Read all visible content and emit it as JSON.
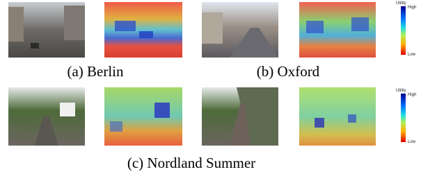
{
  "captions": [
    "(a) Berlin",
    "(b) Oxford",
    "(c) Nordland Summer"
  ],
  "colorbars": [
    {
      "title": "Utility",
      "high": "High",
      "low": "Low"
    },
    {
      "title": "Utility",
      "high": "High",
      "low": "Low"
    }
  ]
}
